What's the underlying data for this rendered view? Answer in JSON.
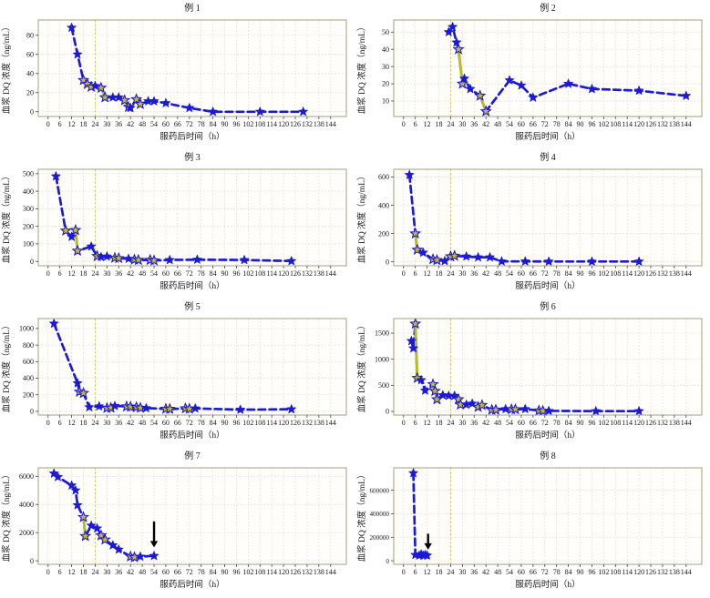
{
  "figure": {
    "xlabel": "服药后时间（h）",
    "ylabel": "血浆 DQ 浓度（ng/mL）",
    "x_ticks": [
      0,
      6,
      12,
      18,
      24,
      30,
      36,
      42,
      48,
      54,
      60,
      66,
      72,
      78,
      84,
      90,
      96,
      102,
      108,
      114,
      120,
      126,
      132,
      138,
      144
    ],
    "reference_vline_x": 24
  },
  "colors": {
    "series_blue": "#1b1bd6",
    "segment_gold": "#b9b92e",
    "gold_star_fill": "#c8b52b",
    "grid": "#d6d6d6",
    "vline_olive": "#cdcd6b",
    "plot_border": "#a79f82",
    "text": "#1a1a1a",
    "arrow": "#000000",
    "background": "#ffffff"
  },
  "chart_data": [
    {
      "type": "line",
      "title": "例 1",
      "xlabel": "服药后时间（h）",
      "ylabel": "血浆 DQ 浓度（ng/mL）",
      "y_ticks": [
        0,
        20,
        40,
        60,
        80
      ],
      "ylim": [
        -5,
        96
      ],
      "vline_x": 24,
      "points": [
        [
          12,
          88,
          0
        ],
        [
          15,
          60,
          0
        ],
        [
          18,
          33,
          1
        ],
        [
          20,
          29,
          1
        ],
        [
          22,
          26,
          1
        ],
        [
          24,
          27,
          0
        ],
        [
          27,
          25,
          1
        ],
        [
          29,
          15,
          1
        ],
        [
          33,
          15,
          0
        ],
        [
          36,
          15,
          0
        ],
        [
          39,
          12,
          1
        ],
        [
          41,
          5,
          1
        ],
        [
          42,
          4,
          0
        ],
        [
          45,
          13,
          1
        ],
        [
          47,
          8,
          1
        ],
        [
          51,
          11,
          0
        ],
        [
          54,
          11,
          0
        ],
        [
          60,
          9,
          0
        ],
        [
          72,
          4,
          0
        ],
        [
          84,
          0,
          0
        ],
        [
          108,
          0,
          0
        ],
        [
          130,
          0,
          0
        ]
      ],
      "yellow_segments": [
        [
          2,
          4
        ],
        [
          6,
          7
        ],
        [
          10,
          11
        ],
        [
          13,
          14
        ]
      ]
    },
    {
      "type": "line",
      "title": "例 2",
      "xlabel": "服药后时间（h）",
      "ylabel": "血浆 DQ 浓度（ng/mL）",
      "y_ticks": [
        10,
        20,
        30,
        40,
        50
      ],
      "ylim": [
        1,
        57
      ],
      "vline_x": 24,
      "points": [
        [
          23,
          50,
          0
        ],
        [
          25,
          53,
          0
        ],
        [
          27,
          44,
          0
        ],
        [
          28,
          40,
          1
        ],
        [
          30,
          20,
          1
        ],
        [
          31,
          23,
          0
        ],
        [
          34,
          17,
          0
        ],
        [
          39,
          13,
          1
        ],
        [
          42,
          4,
          1
        ],
        [
          54,
          22,
          0
        ],
        [
          60,
          19,
          0
        ],
        [
          66,
          12,
          0
        ],
        [
          84,
          20,
          0
        ],
        [
          96,
          17,
          0
        ],
        [
          120,
          16,
          0
        ],
        [
          144,
          13,
          0
        ]
      ],
      "yellow_segments": [
        [
          3,
          4
        ],
        [
          7,
          8
        ]
      ]
    },
    {
      "type": "line",
      "title": "例 3",
      "xlabel": "服药后时间（h）",
      "ylabel": "血浆 DQ 浓度（ng/mL）",
      "y_ticks": [
        0,
        100,
        200,
        300,
        400,
        500
      ],
      "ylim": [
        -25,
        525
      ],
      "vline_x": 24,
      "points": [
        [
          4,
          485,
          0
        ],
        [
          9,
          175,
          1
        ],
        [
          12,
          140,
          0
        ],
        [
          14,
          178,
          1
        ],
        [
          15,
          60,
          1
        ],
        [
          22,
          85,
          0
        ],
        [
          25,
          30,
          1
        ],
        [
          27,
          25,
          0
        ],
        [
          30,
          28,
          0
        ],
        [
          34,
          20,
          1
        ],
        [
          36,
          18,
          1
        ],
        [
          41,
          15,
          0
        ],
        [
          44,
          10,
          1
        ],
        [
          46,
          8,
          1
        ],
        [
          52,
          8,
          1
        ],
        [
          54,
          5,
          1
        ],
        [
          62,
          8,
          0
        ],
        [
          76,
          10,
          0
        ],
        [
          100,
          8,
          0
        ],
        [
          124,
          2,
          0
        ]
      ],
      "yellow_segments": [
        [
          3,
          4
        ],
        [
          9,
          10
        ],
        [
          12,
          13
        ],
        [
          14,
          15
        ]
      ]
    },
    {
      "type": "line",
      "title": "例 4",
      "xlabel": "服药后时间（h）",
      "ylabel": "血浆 DQ 浓度（ng/mL）",
      "y_ticks": [
        0,
        200,
        400,
        600
      ],
      "ylim": [
        -28,
        655
      ],
      "vline_x": 24,
      "points": [
        [
          3,
          615,
          0
        ],
        [
          6,
          200,
          1
        ],
        [
          7,
          85,
          1
        ],
        [
          10,
          65,
          0
        ],
        [
          15,
          18,
          1
        ],
        [
          17,
          12,
          1
        ],
        [
          21,
          6,
          0
        ],
        [
          24,
          38,
          1
        ],
        [
          26,
          42,
          1
        ],
        [
          32,
          38,
          0
        ],
        [
          38,
          32,
          0
        ],
        [
          44,
          32,
          0
        ],
        [
          50,
          3,
          0
        ],
        [
          62,
          3,
          0
        ],
        [
          74,
          2,
          0
        ],
        [
          96,
          2,
          0
        ],
        [
          120,
          2,
          0
        ]
      ],
      "yellow_segments": [
        [
          1,
          2
        ],
        [
          4,
          5
        ],
        [
          7,
          8
        ]
      ]
    },
    {
      "type": "line",
      "title": "例 5",
      "xlabel": "服药后时间（h）",
      "ylabel": "血浆 DQ 浓度（ng/mL）",
      "y_ticks": [
        0,
        200,
        400,
        600,
        800,
        1000
      ],
      "ylim": [
        -45,
        1120
      ],
      "vline_x": 24,
      "points": [
        [
          3,
          1060,
          0
        ],
        [
          15,
          340,
          0
        ],
        [
          16,
          235,
          1
        ],
        [
          18,
          220,
          1
        ],
        [
          21,
          50,
          0
        ],
        [
          26,
          60,
          0
        ],
        [
          30,
          40,
          1
        ],
        [
          32,
          42,
          1
        ],
        [
          34,
          65,
          0
        ],
        [
          40,
          58,
          1
        ],
        [
          42,
          55,
          1
        ],
        [
          45,
          50,
          1
        ],
        [
          47,
          42,
          1
        ],
        [
          50,
          38,
          0
        ],
        [
          60,
          30,
          1
        ],
        [
          62,
          28,
          1
        ],
        [
          70,
          35,
          1
        ],
        [
          72,
          30,
          1
        ],
        [
          75,
          35,
          0
        ],
        [
          98,
          20,
          0
        ],
        [
          124,
          25,
          0
        ]
      ],
      "yellow_segments": [
        [
          2,
          3
        ],
        [
          6,
          7
        ],
        [
          9,
          10
        ],
        [
          11,
          12
        ],
        [
          14,
          15
        ],
        [
          16,
          17
        ]
      ]
    },
    {
      "type": "line",
      "title": "例 6",
      "xlabel": "服药后时间（h）",
      "ylabel": "血浆 DQ 浓度（ng/mL）",
      "y_ticks": [
        0,
        500,
        1000,
        1500
      ],
      "ylim": [
        -70,
        1780
      ],
      "vline_x": 24,
      "points": [
        [
          4,
          1350,
          0
        ],
        [
          5,
          1210,
          0
        ],
        [
          6,
          1680,
          1
        ],
        [
          7,
          640,
          1
        ],
        [
          9,
          600,
          0
        ],
        [
          11,
          400,
          0
        ],
        [
          15,
          520,
          1
        ],
        [
          16,
          390,
          1
        ],
        [
          17,
          230,
          1
        ],
        [
          20,
          310,
          0
        ],
        [
          23,
          300,
          0
        ],
        [
          26,
          300,
          0
        ],
        [
          28,
          230,
          1
        ],
        [
          29,
          130,
          1
        ],
        [
          32,
          130,
          0
        ],
        [
          35,
          150,
          0
        ],
        [
          38,
          85,
          1
        ],
        [
          40,
          120,
          1
        ],
        [
          45,
          30,
          1
        ],
        [
          47,
          30,
          1
        ],
        [
          52,
          45,
          0
        ],
        [
          55,
          40,
          1
        ],
        [
          57,
          40,
          1
        ],
        [
          62,
          45,
          0
        ],
        [
          69,
          15,
          1
        ],
        [
          71,
          10,
          1
        ],
        [
          74,
          10,
          0
        ],
        [
          98,
          5,
          0
        ],
        [
          120,
          5,
          0
        ]
      ],
      "yellow_segments": [
        [
          2,
          3
        ],
        [
          6,
          8
        ],
        [
          12,
          13
        ],
        [
          16,
          17
        ],
        [
          18,
          19
        ],
        [
          21,
          22
        ],
        [
          24,
          25
        ]
      ]
    },
    {
      "type": "line",
      "title": "例 7",
      "xlabel": "服药后时间（h）",
      "ylabel": "血浆 DQ 浓度（ng/mL）",
      "y_ticks": [
        0,
        2000,
        4000,
        6000
      ],
      "ylim": [
        -250,
        6600
      ],
      "vline_x": 24,
      "points": [
        [
          3,
          6200,
          0
        ],
        [
          5,
          5950,
          0
        ],
        [
          12,
          5350,
          0
        ],
        [
          14,
          5000,
          0
        ],
        [
          15,
          3950,
          0
        ],
        [
          18,
          3100,
          1
        ],
        [
          19,
          1750,
          1
        ],
        [
          22,
          2500,
          0
        ],
        [
          25,
          2300,
          0
        ],
        [
          27,
          1800,
          1
        ],
        [
          29,
          1500,
          1
        ],
        [
          33,
          1100,
          0
        ],
        [
          36,
          800,
          0
        ],
        [
          42,
          300,
          1
        ],
        [
          44,
          250,
          1
        ],
        [
          47,
          300,
          0
        ],
        [
          54,
          350,
          0
        ]
      ],
      "yellow_segments": [
        [
          5,
          6
        ],
        [
          9,
          10
        ],
        [
          13,
          14
        ]
      ],
      "arrow": {
        "x": 54,
        "y_from": 2800,
        "y_to": 950
      }
    },
    {
      "type": "line",
      "title": "例 8",
      "xlabel": "服药后时间（h）",
      "ylabel": "血浆 DQ 浓度（ng/mL）",
      "y_ticks": [
        0,
        200000,
        400000,
        600000
      ],
      "ylim": [
        -30000,
        790000
      ],
      "vline_x": 24,
      "points": [
        [
          5,
          745000,
          0
        ],
        [
          6,
          50000,
          0
        ],
        [
          8,
          45000,
          0
        ],
        [
          9,
          55000,
          0
        ],
        [
          10,
          45000,
          0
        ],
        [
          11,
          50000,
          0
        ],
        [
          12,
          45000,
          0
        ]
      ],
      "yellow_segments": [],
      "arrow": {
        "x": 12.5,
        "y_from": 230000,
        "y_to": 95000
      }
    }
  ]
}
